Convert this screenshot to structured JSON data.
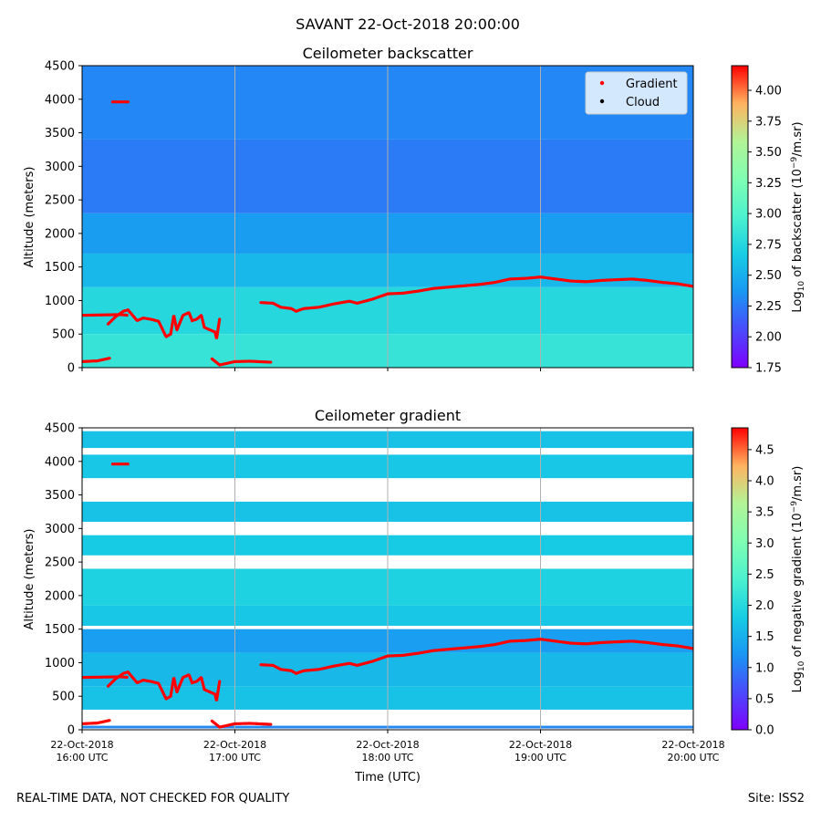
{
  "suptitle": "SAVANT 22-Oct-2018 20:00:00",
  "footer": {
    "left": "REAL-TIME DATA, NOT CHECKED FOR QUALITY",
    "right": "Site: ISS2"
  },
  "chart_data": [
    {
      "type": "heatmap",
      "title": "Ceilometer backscatter",
      "ylabel": "Altitude (meters)",
      "xlabel": "",
      "ylim": [
        0,
        4500
      ],
      "xlim": [
        "16:00",
        "20:00"
      ],
      "yticks": [
        0,
        500,
        1000,
        1500,
        2000,
        2500,
        3000,
        3500,
        4000,
        4500
      ],
      "colorbar": {
        "label": "Log10 of backscatter (10^-9/m.sr)",
        "label_prefix": "Log",
        "label_sub": "10",
        "label_mid": " of backscatter (10",
        "label_sup": "−9",
        "label_suffix": "/m.sr)",
        "min": 1.75,
        "max": 4.2,
        "ticks": [
          "1.75",
          "2.00",
          "2.25",
          "2.50",
          "2.75",
          "3.00",
          "3.25",
          "3.50",
          "3.75",
          "4.00"
        ]
      },
      "legend": {
        "position": "top-right",
        "items": [
          {
            "label": "Gradient",
            "color": "#ff0000"
          },
          {
            "label": "Cloud",
            "color": "#000000"
          }
        ]
      },
      "background_bands": [
        {
          "from": 0,
          "to": 500,
          "value": 2.85
        },
        {
          "from": 500,
          "to": 1200,
          "value": 2.75
        },
        {
          "from": 1200,
          "to": 1700,
          "value": 2.55
        },
        {
          "from": 1700,
          "to": 2300,
          "value": 2.4
        },
        {
          "from": 2300,
          "to": 3400,
          "value": 2.25
        },
        {
          "from": 3400,
          "to": 4500,
          "value": 2.3
        }
      ],
      "show_gradient_series": true
    },
    {
      "type": "heatmap",
      "title": "Ceilometer gradient",
      "ylabel": "Altitude (meters)",
      "xlabel": "Time (UTC)",
      "ylim": [
        0,
        4500
      ],
      "xlim": [
        "16:00",
        "20:00"
      ],
      "yticks": [
        0,
        500,
        1000,
        1500,
        2000,
        2500,
        3000,
        3500,
        4000,
        4500
      ],
      "xticks": [
        {
          "date": "22-Oct-2018",
          "time": "16:00 UTC",
          "h": 16
        },
        {
          "date": "22-Oct-2018",
          "time": "17:00 UTC",
          "h": 17
        },
        {
          "date": "22-Oct-2018",
          "time": "18:00 UTC",
          "h": 18
        },
        {
          "date": "22-Oct-2018",
          "time": "19:00 UTC",
          "h": 19
        },
        {
          "date": "22-Oct-2018",
          "time": "20:00 UTC",
          "h": 20
        }
      ],
      "colorbar": {
        "label": "Log10 of negative gradient (10^-9/m.sr)",
        "label_prefix": "Log",
        "label_sub": "10",
        "label_mid": " of negative gradient (10",
        "label_sup": "−9",
        "label_suffix": "/m.sr)",
        "min": 0.0,
        "max": 4.85,
        "ticks": [
          "0.0",
          "0.5",
          "1.0",
          "1.5",
          "2.0",
          "2.5",
          "3.0",
          "3.5",
          "4.0",
          "4.5"
        ]
      },
      "layers": [
        {
          "from": 20,
          "to": 60,
          "value": 1.1
        },
        {
          "from": 300,
          "to": 650,
          "value": 1.7
        },
        {
          "from": 650,
          "to": 1150,
          "value": 1.6
        },
        {
          "from": 1150,
          "to": 1500,
          "value": 1.3
        },
        {
          "from": 1550,
          "to": 1850,
          "value": 1.75
        },
        {
          "from": 1850,
          "to": 2400,
          "value": 1.9
        },
        {
          "from": 2600,
          "to": 2900,
          "value": 1.8
        },
        {
          "from": 3100,
          "to": 3400,
          "value": 1.7
        },
        {
          "from": 3750,
          "to": 4100,
          "value": 1.75
        },
        {
          "from": 4200,
          "to": 4450,
          "value": 1.7
        }
      ],
      "show_gradient_series": true
    }
  ],
  "gradient_series": {
    "name": "Gradient",
    "color": "#ff0000",
    "segments": [
      [
        [
          16.0,
          780
        ],
        [
          16.25,
          790
        ],
        [
          16.3,
          780
        ]
      ],
      [
        [
          16.0,
          90
        ],
        [
          16.1,
          100
        ],
        [
          16.18,
          140
        ]
      ],
      [
        [
          16.17,
          650
        ],
        [
          16.22,
          760
        ],
        [
          16.27,
          840
        ],
        [
          16.3,
          860
        ],
        [
          16.33,
          780
        ],
        [
          16.36,
          700
        ],
        [
          16.4,
          740
        ],
        [
          16.45,
          720
        ],
        [
          16.5,
          690
        ],
        [
          16.52,
          600
        ],
        [
          16.55,
          460
        ],
        [
          16.58,
          500
        ],
        [
          16.6,
          780
        ],
        [
          16.62,
          560
        ],
        [
          16.66,
          780
        ],
        [
          16.7,
          820
        ],
        [
          16.72,
          700
        ],
        [
          16.75,
          720
        ],
        [
          16.78,
          780
        ],
        [
          16.8,
          600
        ],
        [
          16.83,
          570
        ],
        [
          16.87,
          530
        ],
        [
          16.88,
          430
        ],
        [
          16.9,
          720
        ]
      ],
      [
        [
          16.85,
          130
        ],
        [
          16.9,
          40
        ],
        [
          17.0,
          90
        ],
        [
          17.1,
          95
        ],
        [
          17.24,
          80
        ]
      ],
      [
        [
          17.17,
          970
        ],
        [
          17.25,
          960
        ],
        [
          17.3,
          900
        ],
        [
          17.37,
          880
        ],
        [
          17.4,
          840
        ],
        [
          17.45,
          880
        ],
        [
          17.55,
          900
        ],
        [
          17.65,
          950
        ],
        [
          17.75,
          990
        ],
        [
          17.8,
          960
        ],
        [
          17.9,
          1020
        ],
        [
          18.0,
          1100
        ],
        [
          18.1,
          1110
        ],
        [
          18.2,
          1140
        ],
        [
          18.3,
          1180
        ],
        [
          18.4,
          1200
        ],
        [
          18.5,
          1220
        ],
        [
          18.6,
          1240
        ],
        [
          18.7,
          1270
        ],
        [
          18.8,
          1320
        ],
        [
          18.9,
          1330
        ],
        [
          19.0,
          1350
        ],
        [
          19.1,
          1320
        ],
        [
          19.2,
          1290
        ],
        [
          19.3,
          1280
        ],
        [
          19.4,
          1300
        ],
        [
          19.5,
          1310
        ],
        [
          19.6,
          1320
        ],
        [
          19.7,
          1300
        ],
        [
          19.8,
          1270
        ],
        [
          19.9,
          1250
        ],
        [
          20.0,
          1210
        ]
      ],
      [
        [
          16.2,
          3960
        ],
        [
          16.3,
          3960
        ]
      ]
    ]
  }
}
